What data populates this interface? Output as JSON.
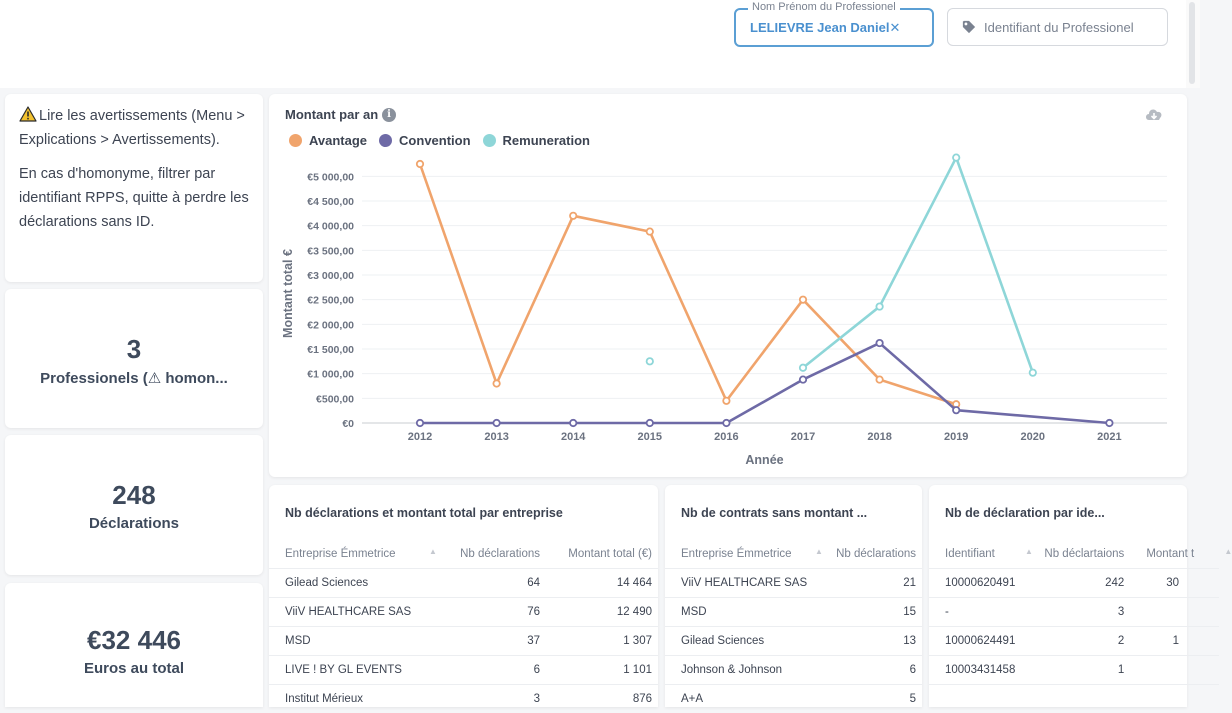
{
  "filters": {
    "name_legend": "Nom Prénom du Professionel",
    "name_value": "LELIEVRE Jean Daniel",
    "name_clear": "✕",
    "id_placeholder": "Identifiant du Professionel"
  },
  "warning": {
    "line1": "Lire les avertissements (Menu > Explications > Avertissements).",
    "line2": "En cas d'homonyme, filtrer par identifiant RPPS, quitte à perdre les déclarations sans ID."
  },
  "kpis": [
    {
      "value": "3",
      "label": "Professionels (⚠ homon..."
    },
    {
      "value": "248",
      "label": "Déclarations"
    },
    {
      "value": "€32 446",
      "label": "Euros au total"
    }
  ],
  "chart": {
    "title": "Montant par an",
    "info_icon": "info-icon",
    "download_icon": "cloud-download-icon"
  },
  "chart_data": {
    "type": "line",
    "title": "Montant par an",
    "xlabel": "Année",
    "ylabel": "Montant total €",
    "x": [
      "2012",
      "2013",
      "2014",
      "2015",
      "2016",
      "2017",
      "2018",
      "2019",
      "2020",
      "2021"
    ],
    "ylim": [
      0,
      5250
    ],
    "yticks": [
      0,
      500,
      1000,
      1500,
      2000,
      2500,
      3000,
      3500,
      4000,
      4500,
      5000
    ],
    "ytick_labels": [
      "€0",
      "€500,00",
      "€1 000,00",
      "€1 500,00",
      "€2 000,00",
      "€2 500,00",
      "€3 000,00",
      "€3 500,00",
      "€4 000,00",
      "€4 500,00",
      "€5 000,00"
    ],
    "legend_position": "top-left",
    "grid": true,
    "series": [
      {
        "name": "Avantage",
        "color": "#f0a46c",
        "values": [
          5250,
          800,
          4200,
          3880,
          450,
          2500,
          880,
          380,
          null,
          null
        ]
      },
      {
        "name": "Convention",
        "color": "#6e6aa6",
        "values": [
          0,
          0,
          0,
          0,
          0,
          880,
          1620,
          260,
          null,
          0
        ]
      },
      {
        "name": "Remuneration",
        "color": "#8ed6d8",
        "values": [
          null,
          null,
          null,
          1250,
          null,
          1120,
          2360,
          5380,
          1020,
          null
        ]
      }
    ]
  },
  "tables": [
    {
      "title": "Nb déclarations et montant total par entreprise",
      "columns": [
        "Entreprise Émmetrice",
        "Nb déclarations",
        "Montant total (€)"
      ],
      "rows": [
        [
          "Gilead Sciences",
          "64",
          "14 464"
        ],
        [
          "ViiV HEALTHCARE SAS",
          "76",
          "12 490"
        ],
        [
          "MSD",
          "37",
          "1 307"
        ],
        [
          "LIVE ! BY GL EVENTS",
          "6",
          "1 101"
        ],
        [
          "Institut Mérieux",
          "3",
          "876"
        ]
      ]
    },
    {
      "title": "Nb de contrats sans montant ...",
      "columns": [
        "Entreprise Émmetrice",
        "Nb déclarations"
      ],
      "rows": [
        [
          "ViiV HEALTHCARE SAS",
          "21"
        ],
        [
          "MSD",
          "15"
        ],
        [
          "Gilead Sciences",
          "13"
        ],
        [
          "Johnson & Johnson",
          "6"
        ],
        [
          "A+A",
          "5"
        ]
      ]
    },
    {
      "title": "Nb de déclaration par ide...",
      "columns": [
        "Identifiant",
        "Nb déclartaions",
        "Montant t"
      ],
      "rows": [
        [
          "10000620491",
          "242",
          "30"
        ],
        [
          "-",
          "3",
          ""
        ],
        [
          "10000624491",
          "2",
          "1"
        ],
        [
          "10003431458",
          "1",
          ""
        ],
        [
          "",
          "",
          ""
        ]
      ]
    }
  ]
}
